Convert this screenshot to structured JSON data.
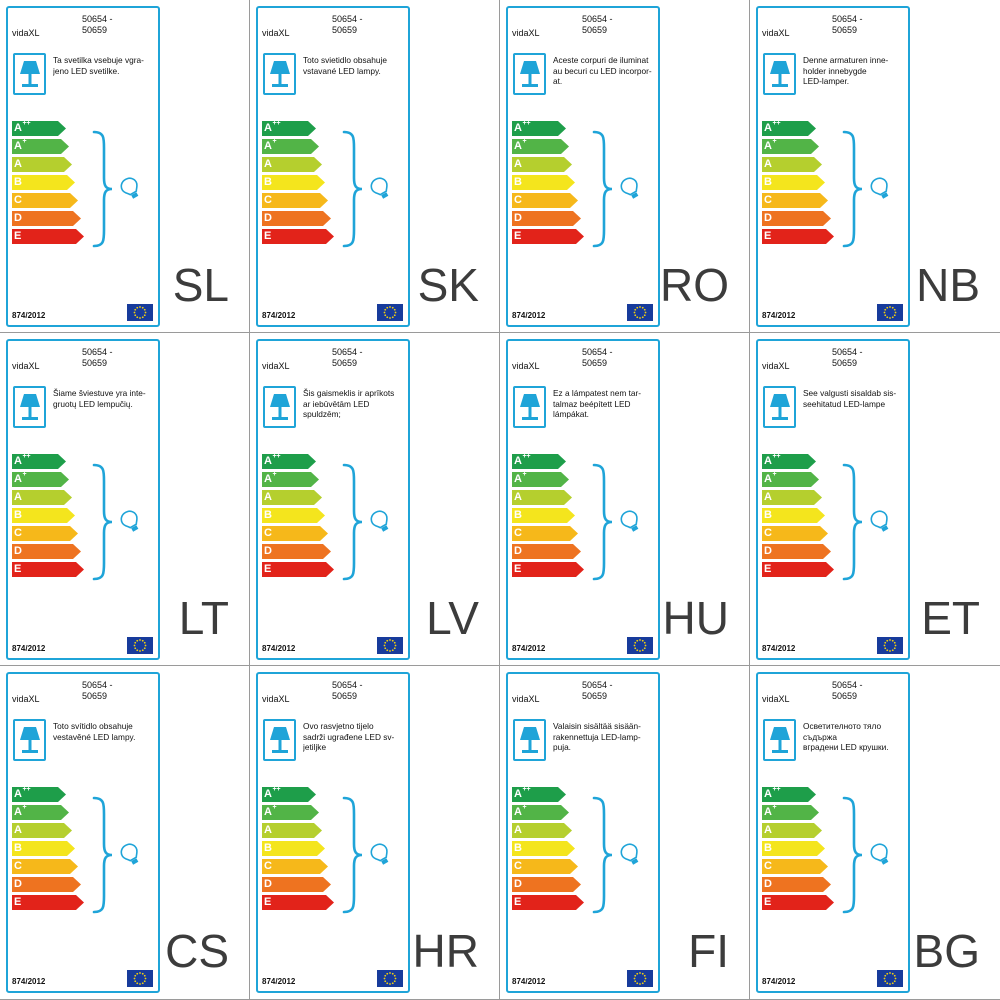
{
  "brand": "vidaXL",
  "model_line1": "50654 -",
  "model_line2": "50659",
  "regulation": "874/2012",
  "energy_classes": [
    {
      "letter": "A",
      "sup": "++",
      "color": "#1e9e4a"
    },
    {
      "letter": "A",
      "sup": "+",
      "color": "#52b447"
    },
    {
      "letter": "A",
      "sup": "",
      "color": "#b5cf2e"
    },
    {
      "letter": "B",
      "sup": "",
      "color": "#f4e51d"
    },
    {
      "letter": "C",
      "sup": "",
      "color": "#f6b81a"
    },
    {
      "letter": "D",
      "sup": "",
      "color": "#ee7320"
    },
    {
      "letter": "E",
      "sup": "",
      "color": "#e2231a"
    }
  ],
  "colors": {
    "frame": "#1fa4d8",
    "eu_flag": "#173b9b",
    "eu_stars": "#f5d20e",
    "language_code": "#3c3c3c"
  },
  "icons": [
    "table-lamp-icon",
    "light-bulb-icon",
    "curly-brace-icon",
    "eu-flag-icon"
  ],
  "labels": [
    {
      "lang": "SL",
      "text": "Ta svetilka vsebuje vgra-\njeno LED svetilke."
    },
    {
      "lang": "SK",
      "text": "Toto svietidlo obsahuje\nvstavané LED lampy."
    },
    {
      "lang": "RO",
      "text": "Aceste corpuri de iluminat\nau becuri cu LED incorpor-\nat."
    },
    {
      "lang": "NB",
      "text": "Denne armaturen inne-\nholder innebygde\nLED-lamper."
    },
    {
      "lang": "LT",
      "text": "Šiame šviestuve yra inte-\ngruotų LED lempučių."
    },
    {
      "lang": "LV",
      "text": "Šis gaismeklis ir aprīkots\nar iebūvētām LED\nspuldzēm;"
    },
    {
      "lang": "HU",
      "text": "Ez a lámpatest nem tar-\ntalmaz beépített LED\nlámpákat."
    },
    {
      "lang": "ET",
      "text": "See valgusti sisaldab sis-\nseehitatud LED-lampe"
    },
    {
      "lang": "CS",
      "text": "Toto svítidlo obsahuje\nvestavěné LED lampy."
    },
    {
      "lang": "HR",
      "text": "Ovo rasvjetno tijelo\nsadrži ugrađene LED sv-\njetiljke"
    },
    {
      "lang": "FI",
      "text": "Valaisin sisältää sisään-\nrakennettuja LED-lamp-\npuja."
    },
    {
      "lang": "BG",
      "text": "Осветителното тяло съдържа\nвградени LED крушки."
    }
  ]
}
